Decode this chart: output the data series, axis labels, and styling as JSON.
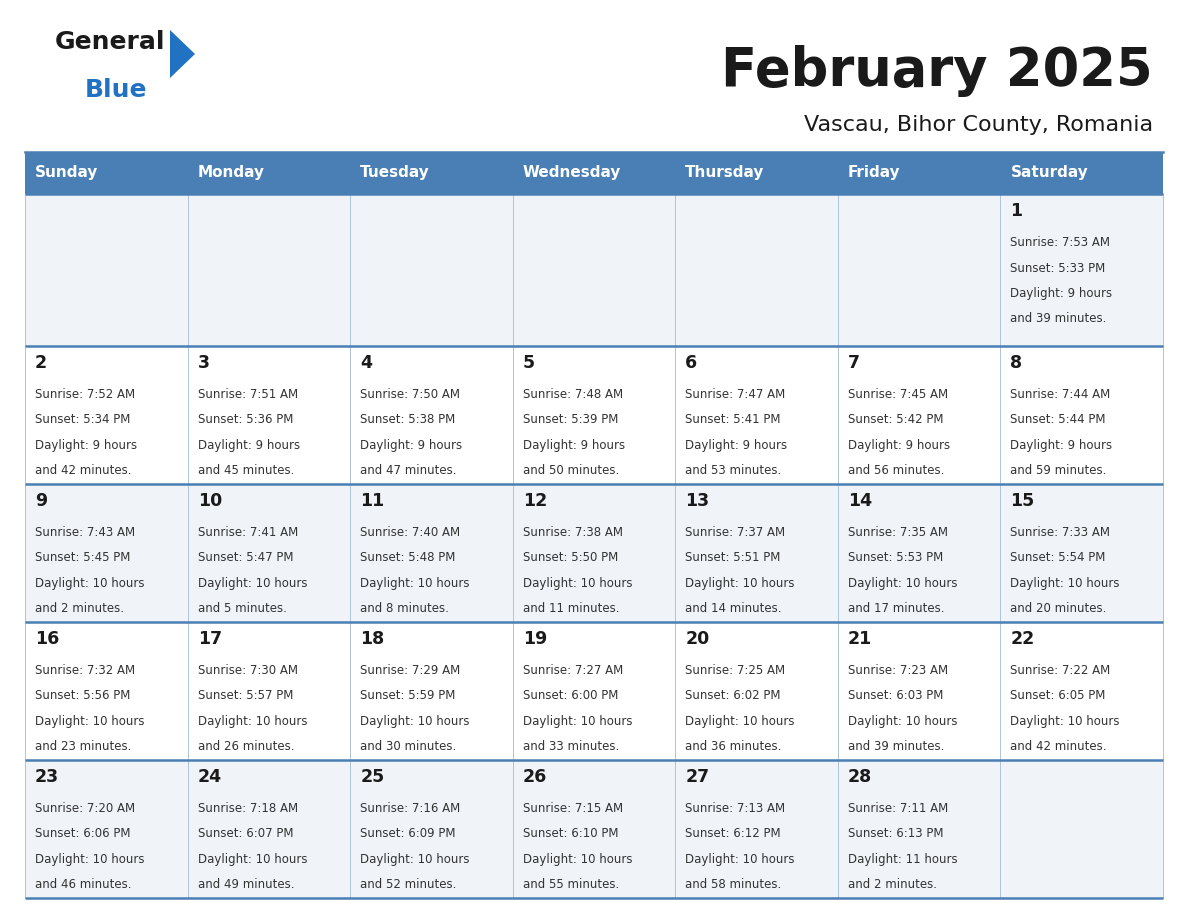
{
  "title": "February 2025",
  "subtitle": "Vascau, Bihor County, Romania",
  "header_bg": "#4a7fb5",
  "header_text": "#ffffff",
  "cell_bg_light": "#f0f4f8",
  "cell_bg_white": "#ffffff",
  "border_color": "#4a7fb5",
  "grid_line_color": "#b0c4d8",
  "day_headers": [
    "Sunday",
    "Monday",
    "Tuesday",
    "Wednesday",
    "Thursday",
    "Friday",
    "Saturday"
  ],
  "title_color": "#1a1a1a",
  "subtitle_color": "#1a1a1a",
  "day_number_color": "#1a1a1a",
  "info_color": "#333333",
  "logo_black": "#1a1a1a",
  "logo_blue": "#2272c3",
  "logo_triangle": "#2272c3",
  "weeks": [
    [
      {
        "day": null,
        "sunrise": null,
        "sunset": null,
        "daylight": null
      },
      {
        "day": null,
        "sunrise": null,
        "sunset": null,
        "daylight": null
      },
      {
        "day": null,
        "sunrise": null,
        "sunset": null,
        "daylight": null
      },
      {
        "day": null,
        "sunrise": null,
        "sunset": null,
        "daylight": null
      },
      {
        "day": null,
        "sunrise": null,
        "sunset": null,
        "daylight": null
      },
      {
        "day": null,
        "sunrise": null,
        "sunset": null,
        "daylight": null
      },
      {
        "day": 1,
        "sunrise": "7:53 AM",
        "sunset": "5:33 PM",
        "daylight": "9 hours\nand 39 minutes."
      }
    ],
    [
      {
        "day": 2,
        "sunrise": "7:52 AM",
        "sunset": "5:34 PM",
        "daylight": "9 hours\nand 42 minutes."
      },
      {
        "day": 3,
        "sunrise": "7:51 AM",
        "sunset": "5:36 PM",
        "daylight": "9 hours\nand 45 minutes."
      },
      {
        "day": 4,
        "sunrise": "7:50 AM",
        "sunset": "5:38 PM",
        "daylight": "9 hours\nand 47 minutes."
      },
      {
        "day": 5,
        "sunrise": "7:48 AM",
        "sunset": "5:39 PM",
        "daylight": "9 hours\nand 50 minutes."
      },
      {
        "day": 6,
        "sunrise": "7:47 AM",
        "sunset": "5:41 PM",
        "daylight": "9 hours\nand 53 minutes."
      },
      {
        "day": 7,
        "sunrise": "7:45 AM",
        "sunset": "5:42 PM",
        "daylight": "9 hours\nand 56 minutes."
      },
      {
        "day": 8,
        "sunrise": "7:44 AM",
        "sunset": "5:44 PM",
        "daylight": "9 hours\nand 59 minutes."
      }
    ],
    [
      {
        "day": 9,
        "sunrise": "7:43 AM",
        "sunset": "5:45 PM",
        "daylight": "10 hours\nand 2 minutes."
      },
      {
        "day": 10,
        "sunrise": "7:41 AM",
        "sunset": "5:47 PM",
        "daylight": "10 hours\nand 5 minutes."
      },
      {
        "day": 11,
        "sunrise": "7:40 AM",
        "sunset": "5:48 PM",
        "daylight": "10 hours\nand 8 minutes."
      },
      {
        "day": 12,
        "sunrise": "7:38 AM",
        "sunset": "5:50 PM",
        "daylight": "10 hours\nand 11 minutes."
      },
      {
        "day": 13,
        "sunrise": "7:37 AM",
        "sunset": "5:51 PM",
        "daylight": "10 hours\nand 14 minutes."
      },
      {
        "day": 14,
        "sunrise": "7:35 AM",
        "sunset": "5:53 PM",
        "daylight": "10 hours\nand 17 minutes."
      },
      {
        "day": 15,
        "sunrise": "7:33 AM",
        "sunset": "5:54 PM",
        "daylight": "10 hours\nand 20 minutes."
      }
    ],
    [
      {
        "day": 16,
        "sunrise": "7:32 AM",
        "sunset": "5:56 PM",
        "daylight": "10 hours\nand 23 minutes."
      },
      {
        "day": 17,
        "sunrise": "7:30 AM",
        "sunset": "5:57 PM",
        "daylight": "10 hours\nand 26 minutes."
      },
      {
        "day": 18,
        "sunrise": "7:29 AM",
        "sunset": "5:59 PM",
        "daylight": "10 hours\nand 30 minutes."
      },
      {
        "day": 19,
        "sunrise": "7:27 AM",
        "sunset": "6:00 PM",
        "daylight": "10 hours\nand 33 minutes."
      },
      {
        "day": 20,
        "sunrise": "7:25 AM",
        "sunset": "6:02 PM",
        "daylight": "10 hours\nand 36 minutes."
      },
      {
        "day": 21,
        "sunrise": "7:23 AM",
        "sunset": "6:03 PM",
        "daylight": "10 hours\nand 39 minutes."
      },
      {
        "day": 22,
        "sunrise": "7:22 AM",
        "sunset": "6:05 PM",
        "daylight": "10 hours\nand 42 minutes."
      }
    ],
    [
      {
        "day": 23,
        "sunrise": "7:20 AM",
        "sunset": "6:06 PM",
        "daylight": "10 hours\nand 46 minutes."
      },
      {
        "day": 24,
        "sunrise": "7:18 AM",
        "sunset": "6:07 PM",
        "daylight": "10 hours\nand 49 minutes."
      },
      {
        "day": 25,
        "sunrise": "7:16 AM",
        "sunset": "6:09 PM",
        "daylight": "10 hours\nand 52 minutes."
      },
      {
        "day": 26,
        "sunrise": "7:15 AM",
        "sunset": "6:10 PM",
        "daylight": "10 hours\nand 55 minutes."
      },
      {
        "day": 27,
        "sunrise": "7:13 AM",
        "sunset": "6:12 PM",
        "daylight": "10 hours\nand 58 minutes."
      },
      {
        "day": 28,
        "sunrise": "7:11 AM",
        "sunset": "6:13 PM",
        "daylight": "11 hours\nand 2 minutes."
      },
      {
        "day": null,
        "sunrise": null,
        "sunset": null,
        "daylight": null
      }
    ]
  ]
}
